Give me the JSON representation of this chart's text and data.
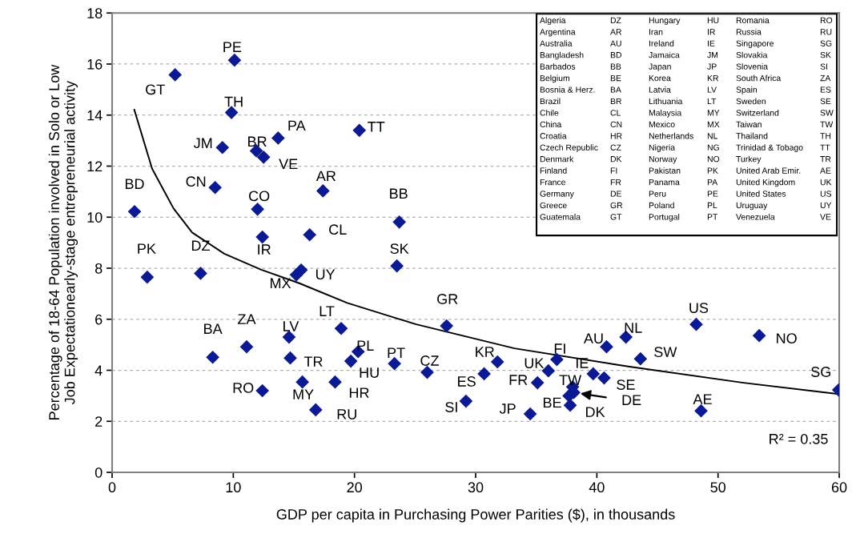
{
  "chart_data": {
    "type": "scatter",
    "xlabel": "GDP per capita in Purchasing Power Parities ($), in thousands",
    "ylabel": "Percentage of 18-64 Population involved in Solo or Low\nJob Expectationearly-stage entrepreneurial activity",
    "xlim": [
      0,
      60
    ],
    "ylim": [
      0,
      18
    ],
    "xticks": [
      0,
      10,
      20,
      30,
      40,
      50,
      60
    ],
    "yticks": [
      0,
      2,
      4,
      6,
      8,
      10,
      12,
      14,
      16,
      18
    ],
    "grid": "y",
    "legend": false,
    "marker": "diamond",
    "series": [
      {
        "name": "PE",
        "x": [
          10.1
        ],
        "values": [
          16.15
        ],
        "color": "#0a1a96"
      },
      {
        "name": "GT",
        "x": [
          5.2
        ],
        "values": [
          15.58
        ],
        "color": "#0a1a96"
      },
      {
        "name": "TH",
        "x": [
          9.85
        ],
        "values": [
          14.1
        ],
        "color": "#0a1a96"
      },
      {
        "name": "JM",
        "x": [
          9.1
        ],
        "values": [
          12.73
        ],
        "color": "#0a1a96"
      },
      {
        "name": "BR",
        "x": [
          11.9
        ],
        "values": [
          12.6
        ],
        "color": "#0a1a96"
      },
      {
        "name": "VE",
        "x": [
          12.5
        ],
        "values": [
          12.35
        ],
        "color": "#0a1a96"
      },
      {
        "name": "PA",
        "x": [
          13.7
        ],
        "values": [
          13.1
        ],
        "color": "#0a1a96"
      },
      {
        "name": "TT",
        "x": [
          20.4
        ],
        "values": [
          13.4
        ],
        "color": "#0a1a96"
      },
      {
        "name": "CN",
        "x": [
          8.5
        ],
        "values": [
          11.16
        ],
        "color": "#0a1a96"
      },
      {
        "name": "AR",
        "x": [
          17.4
        ],
        "values": [
          11.03
        ],
        "color": "#0a1a96"
      },
      {
        "name": "BD",
        "x": [
          1.85
        ],
        "values": [
          10.22
        ],
        "color": "#0a1a96"
      },
      {
        "name": "CO",
        "x": [
          12.0
        ],
        "values": [
          10.31
        ],
        "color": "#0a1a96"
      },
      {
        "name": "BB",
        "x": [
          23.7
        ],
        "values": [
          9.81
        ],
        "color": "#0a1a96"
      },
      {
        "name": "IR",
        "x": [
          12.4
        ],
        "values": [
          9.22
        ],
        "color": "#0a1a96"
      },
      {
        "name": "CL",
        "x": [
          16.3
        ],
        "values": [
          9.31
        ],
        "color": "#0a1a96"
      },
      {
        "name": "SK",
        "x": [
          23.5
        ],
        "values": [
          8.09
        ],
        "color": "#0a1a96"
      },
      {
        "name": "PK",
        "x": [
          2.9
        ],
        "values": [
          7.65
        ],
        "color": "#0a1a96"
      },
      {
        "name": "DZ",
        "x": [
          7.3
        ],
        "values": [
          7.8
        ],
        "color": "#0a1a96"
      },
      {
        "name": "MX",
        "x": [
          15.2
        ],
        "values": [
          7.74
        ],
        "color": "#0a1a96"
      },
      {
        "name": "UY",
        "x": [
          15.6
        ],
        "values": [
          7.93
        ],
        "color": "#0a1a96"
      },
      {
        "name": "LT",
        "x": [
          18.9
        ],
        "values": [
          5.64
        ],
        "color": "#0a1a96"
      },
      {
        "name": "BA",
        "x": [
          8.3
        ],
        "values": [
          4.51
        ],
        "color": "#0a1a96"
      },
      {
        "name": "ZA",
        "x": [
          11.1
        ],
        "values": [
          4.92
        ],
        "color": "#0a1a96"
      },
      {
        "name": "LV",
        "x": [
          14.6
        ],
        "values": [
          5.3
        ],
        "color": "#0a1a96"
      },
      {
        "name": "TR",
        "x": [
          14.7
        ],
        "values": [
          4.48
        ],
        "color": "#0a1a96"
      },
      {
        "name": "RO",
        "x": [
          12.4
        ],
        "values": [
          3.2
        ],
        "color": "#0a1a96"
      },
      {
        "name": "MY",
        "x": [
          15.7
        ],
        "values": [
          3.54
        ],
        "color": "#0a1a96"
      },
      {
        "name": "RU",
        "x": [
          16.8
        ],
        "values": [
          2.45
        ],
        "color": "#0a1a96"
      },
      {
        "name": "HR",
        "x": [
          18.4
        ],
        "values": [
          3.54
        ],
        "color": "#0a1a96"
      },
      {
        "name": "PL",
        "x": [
          20.3
        ],
        "values": [
          4.73
        ],
        "color": "#0a1a96"
      },
      {
        "name": "HU",
        "x": [
          19.7
        ],
        "values": [
          4.36
        ],
        "color": "#0a1a96"
      },
      {
        "name": "PT",
        "x": [
          23.3
        ],
        "values": [
          4.26
        ],
        "color": "#0a1a96"
      },
      {
        "name": "GR",
        "x": [
          27.6
        ],
        "values": [
          5.74
        ],
        "color": "#0a1a96"
      },
      {
        "name": "CZ",
        "x": [
          26.0
        ],
        "values": [
          3.92
        ],
        "color": "#0a1a96"
      },
      {
        "name": "KR",
        "x": [
          31.8
        ],
        "values": [
          4.33
        ],
        "color": "#0a1a96"
      },
      {
        "name": "ES",
        "x": [
          30.7
        ],
        "values": [
          3.86
        ],
        "color": "#0a1a96"
      },
      {
        "name": "SI",
        "x": [
          29.2
        ],
        "values": [
          2.79
        ],
        "color": "#0a1a96"
      },
      {
        "name": "JP",
        "x": [
          34.5
        ],
        "values": [
          2.29
        ],
        "color": "#0a1a96"
      },
      {
        "name": "FR",
        "x": [
          35.1
        ],
        "values": [
          3.51
        ],
        "color": "#0a1a96"
      },
      {
        "name": "UK",
        "x": [
          36.0
        ],
        "values": [
          3.98
        ],
        "color": "#0a1a96"
      },
      {
        "name": "FI",
        "x": [
          36.7
        ],
        "values": [
          4.42
        ],
        "color": "#0a1a96"
      },
      {
        "name": "TW",
        "x": [
          38.0
        ],
        "values": [
          3.35
        ],
        "color": "#0a1a96"
      },
      {
        "name": "DE",
        "x": [
          38.1
        ],
        "values": [
          3.13
        ],
        "color": "#0a1a96"
      },
      {
        "name": "BE",
        "x": [
          37.7
        ],
        "values": [
          3.0
        ],
        "color": "#0a1a96"
      },
      {
        "name": "DK",
        "x": [
          37.8
        ],
        "values": [
          2.63
        ],
        "color": "#0a1a96"
      },
      {
        "name": "IE",
        "x": [
          39.7
        ],
        "values": [
          3.86
        ],
        "color": "#0a1a96"
      },
      {
        "name": "SE",
        "x": [
          40.6
        ],
        "values": [
          3.7
        ],
        "color": "#0a1a96"
      },
      {
        "name": "AU",
        "x": [
          40.8
        ],
        "values": [
          4.92
        ],
        "color": "#0a1a96"
      },
      {
        "name": "NL",
        "x": [
          42.4
        ],
        "values": [
          5.3
        ],
        "color": "#0a1a96"
      },
      {
        "name": "SW",
        "x": [
          43.6
        ],
        "values": [
          4.45
        ],
        "color": "#0a1a96"
      },
      {
        "name": "US",
        "x": [
          48.2
        ],
        "values": [
          5.8
        ],
        "color": "#0a1a96"
      },
      {
        "name": "NO",
        "x": [
          53.4
        ],
        "values": [
          5.36
        ],
        "color": "#0a1a96"
      },
      {
        "name": "AE",
        "x": [
          48.6
        ],
        "values": [
          2.41
        ],
        "color": "#0a1a96"
      },
      {
        "name": "SG",
        "x": [
          59.95
        ],
        "values": [
          3.23
        ],
        "color": "#0a1a96"
      },
      {
        "type": "line",
        "marker": "none",
        "color": "#000000",
        "x": [
          1.83,
          3.3,
          5.07,
          6.6,
          9.25,
          12.3,
          15.4,
          19.4,
          23.8,
          25.1,
          33.2,
          42.7,
          52.1,
          59.9
        ],
        "values": [
          14.21,
          11.9,
          10.34,
          9.4,
          8.57,
          7.94,
          7.42,
          6.64,
          5.99,
          5.8,
          4.86,
          4.14,
          3.51,
          3.07
        ]
      }
    ],
    "annotations": [
      "R² = 0.35",
      "Algeria",
      "DZ",
      "Argentina",
      "AR",
      "Australia",
      "AU",
      "Bangladesh",
      "BD",
      "Barbados",
      "BB",
      "Belgium",
      "BE",
      "Bosnia & Herz.",
      "BA",
      "Brazil",
      "BR",
      "Chile",
      "CL",
      "China",
      "CN",
      "Croatia",
      "HR",
      "Czech Republic",
      "CZ",
      "Denmark",
      "DK",
      "Finland",
      "FI",
      "France",
      "FR",
      "Germany",
      "DE",
      "Greece",
      "GR",
      "Guatemala",
      "GT",
      "Hungary",
      "HU",
      "Iran",
      "IR",
      "Ireland",
      "IE",
      "Jamaica",
      "JM",
      "Japan",
      "JP",
      "Korea",
      "KR",
      "Latvia",
      "LV",
      "Lithuania",
      "LT",
      "Malaysia",
      "MY",
      "Mexico",
      "MX",
      "Netherlands",
      "NL",
      "Nigeria",
      "NG",
      "Norway",
      "NO",
      "Pakistan",
      "PK",
      "Panama",
      "PA",
      "Peru",
      "PE",
      "Poland",
      "PL",
      "Portugal",
      "PT",
      "Romania",
      "RO",
      "Russia",
      "RU",
      "Singapore",
      "SG",
      "Slovakia",
      "SK",
      "Slovenia",
      "SI",
      "South Africa",
      "ZA",
      "Spain",
      "ES",
      "Sweden",
      "SE",
      "Switzerland",
      "SW",
      "Taiwan",
      "TW",
      "Thailand",
      "TH",
      "Trinidad & Tobago",
      "TT",
      "Turkey",
      "TR",
      "United Arab Emir.",
      "AE",
      "United Kingdom",
      "UK",
      "United States",
      "US",
      "Uruguay",
      "UY",
      "Venezuela",
      "VE"
    ]
  }
}
